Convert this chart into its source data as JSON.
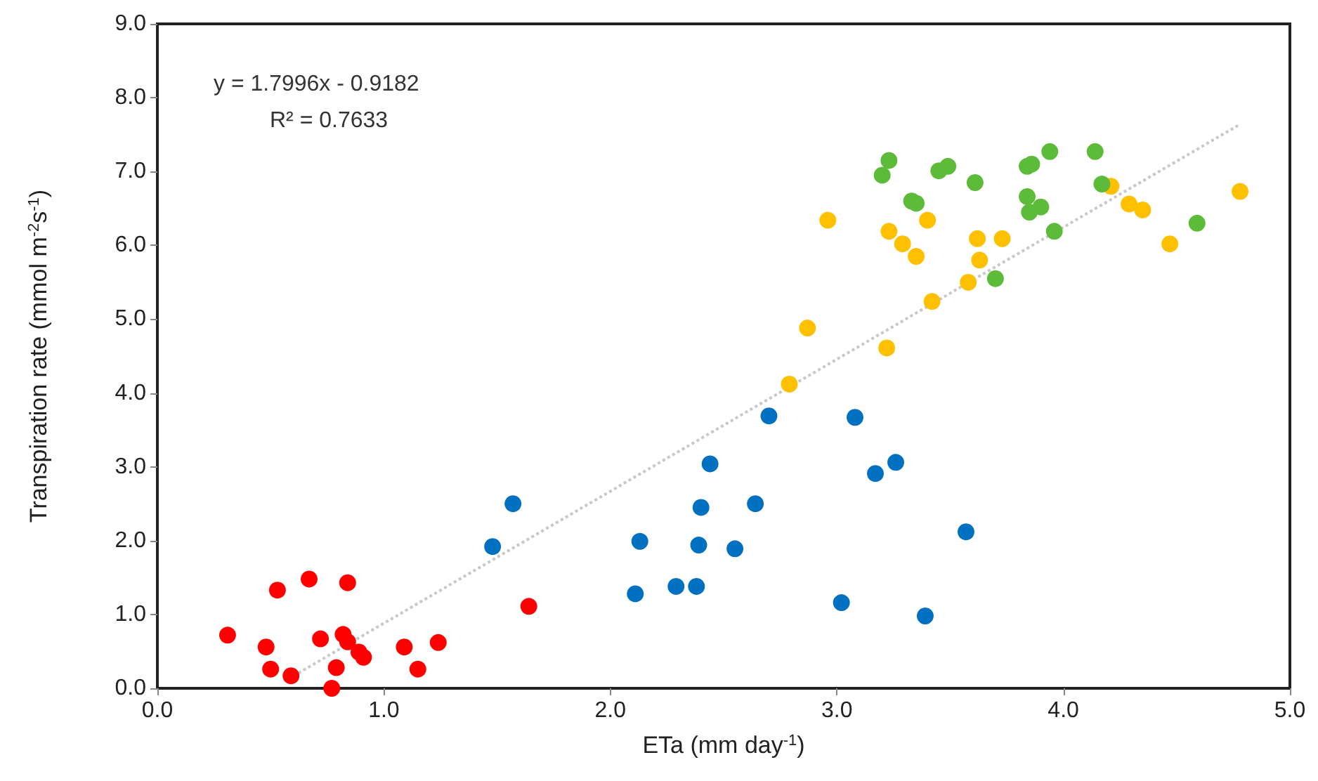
{
  "chart_data": {
    "type": "scatter",
    "xlabel": "ETa (mm day$^{-1}$)",
    "ylabel": "Transpiration rate (mmol m$^{-2}$s$^{-1}$)",
    "annotations": [
      "y = 1.7996x - 0.9182",
      "R² = 0.7633"
    ],
    "xlim": [
      0,
      5
    ],
    "xticks": [
      {
        "value": 0,
        "label": "0.0"
      },
      {
        "value": 1,
        "label": "1.0"
      },
      {
        "value": 2,
        "label": "2.0"
      },
      {
        "value": 3,
        "label": "3.0"
      },
      {
        "value": 4,
        "label": "4.0"
      },
      {
        "value": 5,
        "label": "5.0"
      }
    ],
    "ylim": [
      0,
      9
    ],
    "yticks": [
      {
        "value": 0,
        "label": "0.0"
      },
      {
        "value": 1,
        "label": "1.0"
      },
      {
        "value": 2,
        "label": "2.0"
      },
      {
        "value": 3,
        "label": "3.0"
      },
      {
        "value": 4,
        "label": "4.0"
      },
      {
        "value": 5,
        "label": "5.0"
      },
      {
        "value": 6,
        "label": "6.0"
      },
      {
        "value": 7,
        "label": "7.0"
      },
      {
        "value": 8,
        "label": "8.0"
      },
      {
        "value": 9,
        "label": "9.0"
      }
    ],
    "grid": false,
    "marker": "circle",
    "series": [
      {
        "type": "line",
        "color": "#c8c8c8",
        "line_style": "dotted",
        "marker": "none",
        "x": [
          0.58,
          4.78
        ],
        "values": [
          0.13,
          7.64
        ]
      },
      {
        "color": "#ff0000",
        "x": [
          0.31,
          0.53,
          0.67,
          0.84,
          0.48,
          0.5,
          0.59,
          0.72,
          0.82,
          0.84,
          0.89,
          0.91,
          0.79,
          0.77,
          1.09,
          1.15,
          1.24,
          1.64
        ],
        "values": [
          0.72,
          1.33,
          1.48,
          1.43,
          0.56,
          0.26,
          0.17,
          0.67,
          0.73,
          0.63,
          0.49,
          0.42,
          0.28,
          0.0,
          0.56,
          0.26,
          0.62,
          1.11
        ]
      },
      {
        "color": "#0070c0",
        "x": [
          1.48,
          1.57,
          2.11,
          2.13,
          2.29,
          2.38,
          2.39,
          2.4,
          2.44,
          2.55,
          2.64,
          2.7,
          3.02,
          3.08,
          3.17,
          3.26,
          3.39,
          3.57
        ],
        "values": [
          1.92,
          2.5,
          1.28,
          1.99,
          1.38,
          1.38,
          1.94,
          2.45,
          3.04,
          1.89,
          2.5,
          3.69,
          1.16,
          3.67,
          2.91,
          3.06,
          0.98,
          2.12
        ]
      },
      {
        "color": "#ffc000",
        "x": [
          2.79,
          2.87,
          2.96,
          3.22,
          3.23,
          3.29,
          3.35,
          3.4,
          3.42,
          3.58,
          3.62,
          3.63,
          3.73,
          4.21,
          4.29,
          4.35,
          4.47,
          4.78
        ],
        "values": [
          4.12,
          4.88,
          6.34,
          4.61,
          6.19,
          6.02,
          5.85,
          6.34,
          5.24,
          5.5,
          6.09,
          5.8,
          6.09,
          6.8,
          6.56,
          6.48,
          6.02,
          6.73
        ]
      },
      {
        "color": "#5dbb3a",
        "x": [
          3.2,
          3.23,
          3.33,
          3.35,
          3.45,
          3.49,
          3.61,
          3.84,
          3.86,
          3.94,
          3.84,
          3.85,
          3.9,
          3.96,
          3.7,
          4.14,
          4.17,
          4.59
        ],
        "values": [
          6.95,
          7.15,
          6.6,
          6.57,
          7.01,
          7.07,
          6.85,
          7.07,
          7.1,
          7.27,
          6.66,
          6.45,
          6.52,
          6.19,
          5.55,
          7.27,
          6.83,
          6.3
        ]
      }
    ]
  }
}
